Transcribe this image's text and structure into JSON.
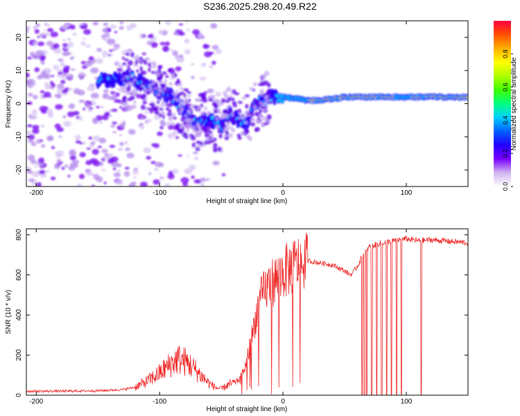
{
  "title": "S236.2025.298.20.49.R22",
  "chart_data": [
    {
      "type": "heatmap",
      "title": "S236.2025.298.20.49.R22",
      "xlabel": "Height of straight line (km)",
      "ylabel": "Frequency (Hz)",
      "xlim": [
        -208,
        150
      ],
      "ylim": [
        -25,
        25
      ],
      "x_ticks": [
        -200,
        -100,
        0,
        100
      ],
      "y_ticks": [
        -20,
        -10,
        0,
        10,
        20
      ],
      "colorbar": {
        "label": "Normalized spectral amplitude",
        "range": [
          0,
          1
        ],
        "ticks": [
          0.0,
          0.2,
          0.4,
          0.6,
          0.8
        ],
        "stops": [
          "#ffffff",
          "#d0b4f0",
          "#7a00ff",
          "#2200ff",
          "#0060ff",
          "#00d0ff",
          "#00ff80",
          "#40ff00",
          "#b0ff00",
          "#ffff00",
          "#ffb000",
          "#ff5000",
          "#ff0040"
        ]
      },
      "ridge": {
        "x": [
          -145,
          -130,
          -120,
          -110,
          -100,
          -95,
          -90,
          -85,
          -80,
          -75,
          -70,
          -65,
          -60,
          -55,
          -50,
          -45,
          -40,
          -35,
          -30,
          -25,
          -20,
          -15,
          -10,
          -5,
          0,
          10,
          20,
          30,
          40,
          50,
          60,
          70,
          80,
          90,
          100,
          110,
          120,
          130,
          140,
          150
        ],
        "y": [
          7,
          8,
          7,
          6,
          4,
          3,
          2,
          0,
          -2,
          -4,
          -6,
          -5,
          -5,
          -6,
          -7,
          -3,
          -4,
          -5,
          -6,
          -2,
          0,
          1,
          2,
          2,
          2,
          1.5,
          1,
          1,
          1.5,
          2,
          2,
          2,
          2,
          2,
          2,
          2,
          2,
          2,
          2,
          2
        ]
      }
    },
    {
      "type": "line",
      "xlabel": "Height of straight line (km)",
      "ylabel": "SNR (10 * v/v)",
      "xlim": [
        -208,
        150
      ],
      "ylim": [
        0,
        830
      ],
      "x_ticks": [
        -200,
        -100,
        0,
        100
      ],
      "y_ticks": [
        0,
        200,
        400,
        600,
        800
      ],
      "color": "#ee2222",
      "series": [
        {
          "name": "SNR",
          "x": [
            -208,
            -180,
            -150,
            -130,
            -120,
            -110,
            -100,
            -90,
            -85,
            -80,
            -75,
            -70,
            -65,
            -60,
            -55,
            -50,
            -45,
            -40,
            -35,
            -30,
            -25,
            -20,
            -15,
            -10,
            -5,
            0,
            10,
            20,
            30,
            40,
            50,
            55,
            60,
            65,
            70,
            80,
            90,
            100,
            110,
            120,
            130,
            140,
            150
          ],
          "values": [
            20,
            20,
            22,
            28,
            40,
            70,
            110,
            160,
            180,
            170,
            150,
            120,
            90,
            60,
            40,
            30,
            50,
            60,
            80,
            150,
            300,
            450,
            520,
            560,
            580,
            610,
            650,
            670,
            660,
            650,
            620,
            600,
            640,
            700,
            740,
            760,
            770,
            780,
            770,
            775,
            770,
            765,
            760
          ]
        }
      ],
      "dropouts_x": [
        64,
        66,
        68,
        72,
        76,
        80,
        84,
        88,
        92,
        96,
        112
      ]
    }
  ]
}
